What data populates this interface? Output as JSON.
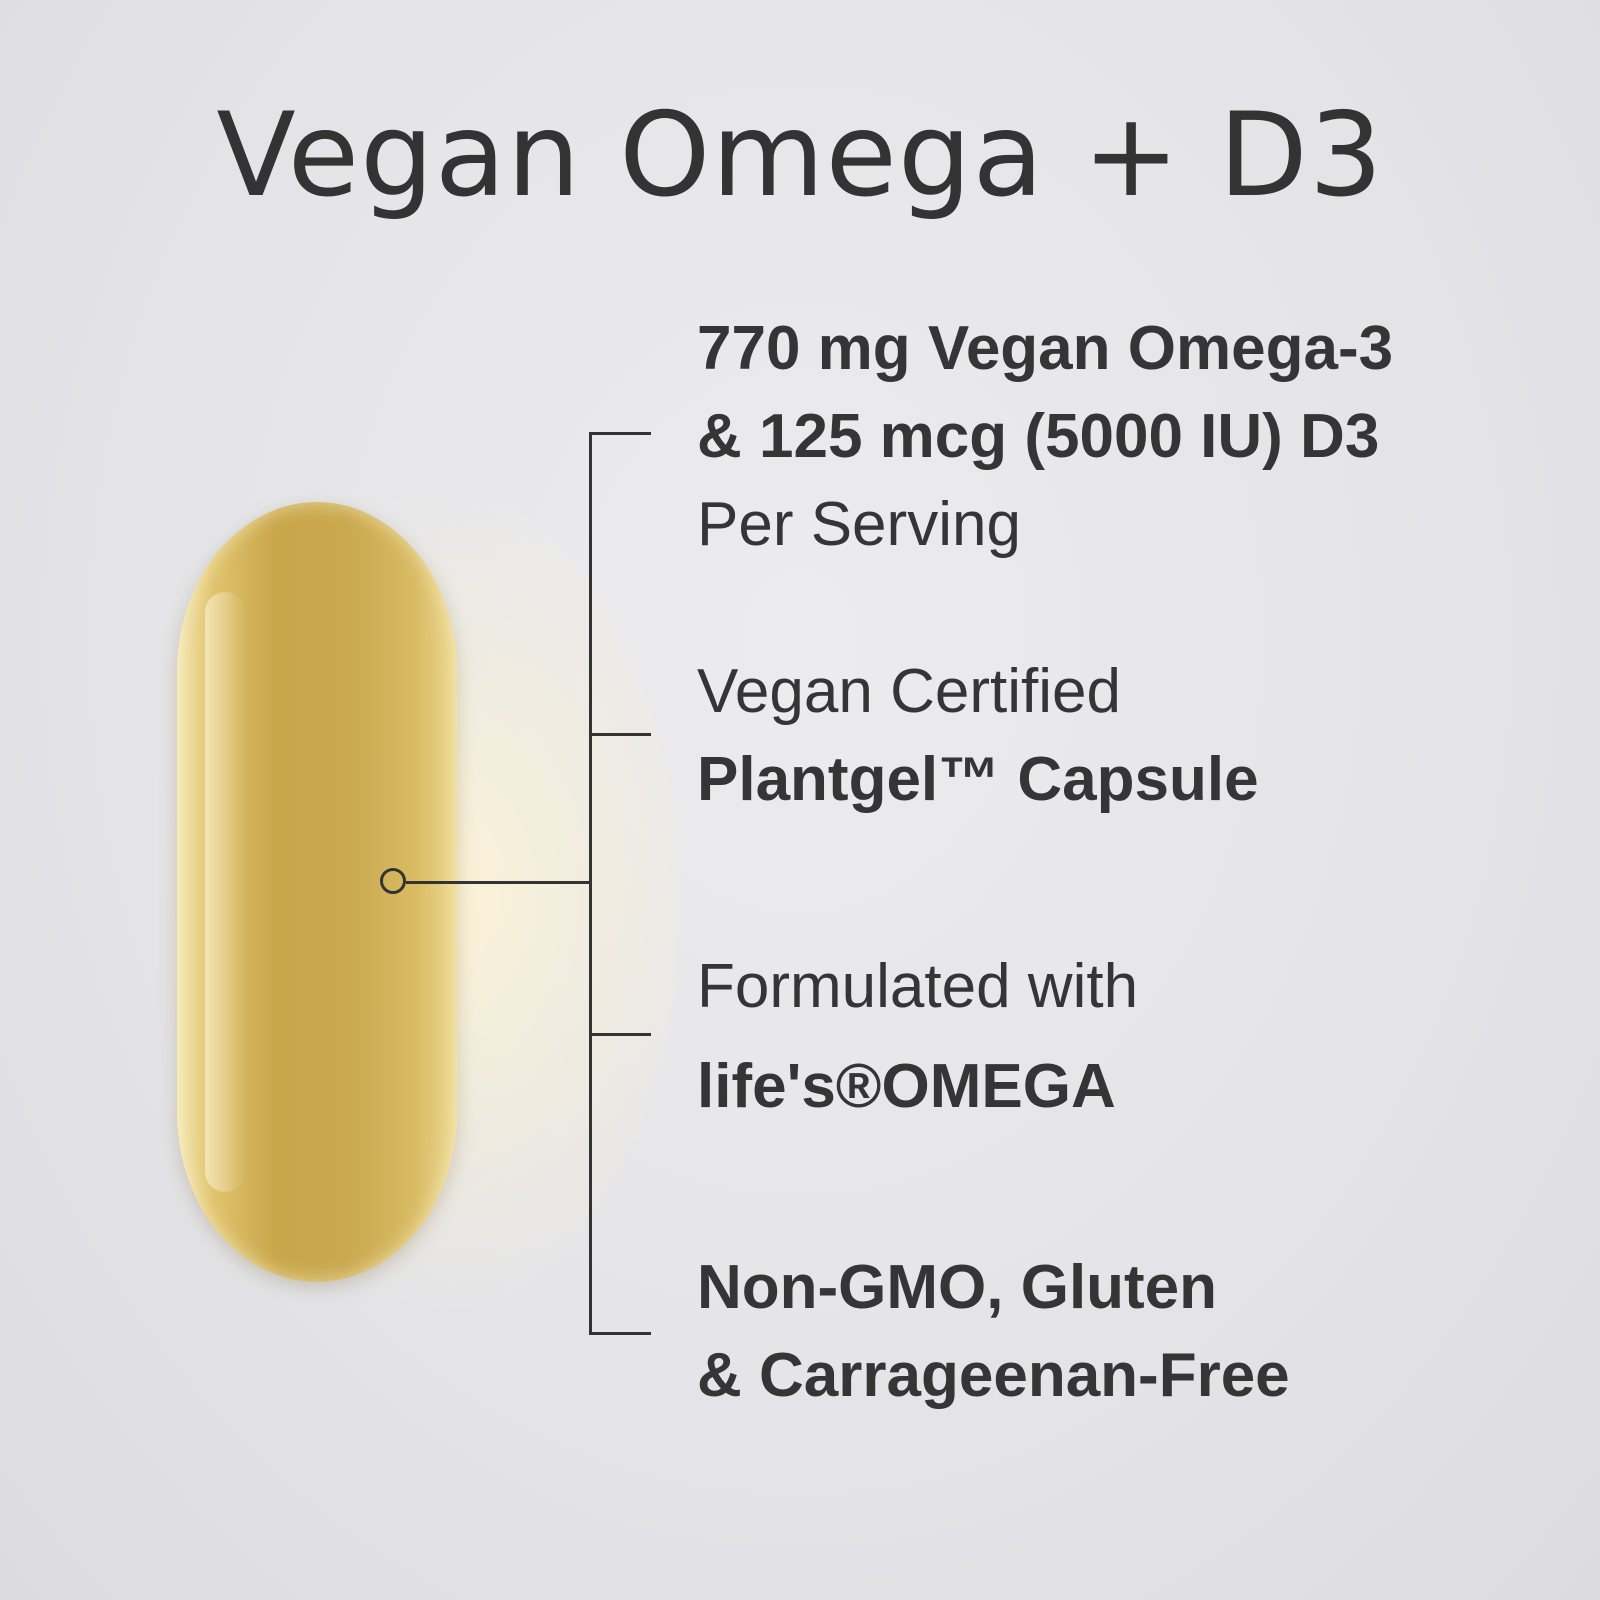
{
  "title": "Vegan Omega + D3",
  "features": [
    {
      "lines": [
        {
          "text": "770 mg Vegan Omega-3",
          "bold": true
        },
        {
          "text": "& 125 mcg (5000 IU) D3",
          "bold": true
        },
        {
          "text": "Per Serving",
          "bold": false
        }
      ]
    },
    {
      "lines": [
        {
          "text": "Vegan Certified",
          "bold": false
        },
        {
          "text": "Plantgel™ Capsule",
          "bold": true
        }
      ]
    },
    {
      "lines": [
        {
          "text": "Formulated with",
          "bold": false
        },
        {
          "text": "life's®OMEGA",
          "bold": true
        }
      ]
    },
    {
      "lines": [
        {
          "text": "Non-GMO, Gluten",
          "bold": true
        },
        {
          "text": "& Carrageenan-Free",
          "bold": true
        }
      ]
    }
  ],
  "colors": {
    "text": "#353535",
    "background": "#e6e6e8",
    "capsule": "#c9a64a"
  }
}
